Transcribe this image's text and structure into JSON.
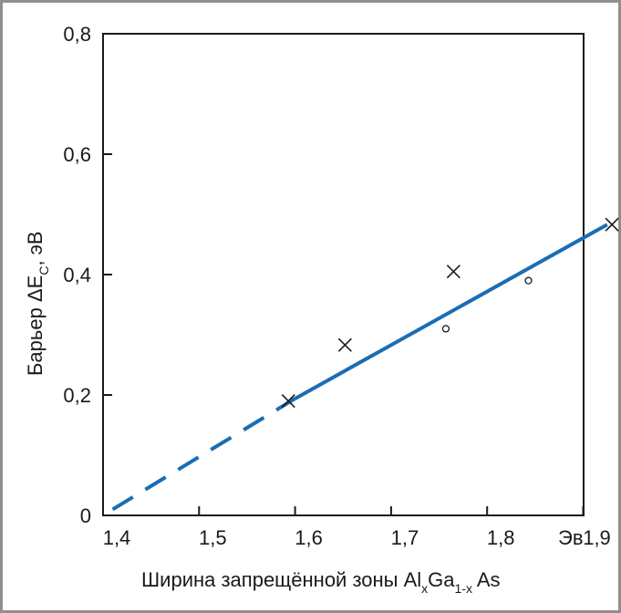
{
  "chart_data": {
    "type": "scatter",
    "xlabel": {
      "main": "Ширина запрещённой зоны Al",
      "sub1": "x",
      "mid": "Ga",
      "sub2": "1-x",
      "end": " As"
    },
    "ylabel": {
      "main": "Барьер ΔE",
      "sub": "C",
      "end": ", эВ"
    },
    "x_unit": "Эв",
    "xlim": [
      1.4,
      1.9
    ],
    "ylim": [
      0,
      0.8
    ],
    "x_ticks": [
      {
        "value": 1.4,
        "label": "1,4"
      },
      {
        "value": 1.5,
        "label": "1,5"
      },
      {
        "value": 1.6,
        "label": "1,6"
      },
      {
        "value": 1.7,
        "label": "1,7"
      },
      {
        "value": 1.8,
        "label": "1,8"
      },
      {
        "value": 1.9,
        "label": "1,9"
      }
    ],
    "y_ticks": [
      {
        "value": 0,
        "label": "0"
      },
      {
        "value": 0.2,
        "label": "0,2"
      },
      {
        "value": 0.4,
        "label": "0,4"
      },
      {
        "value": 0.6,
        "label": "0,6"
      },
      {
        "value": 0.8,
        "label": "0,8"
      }
    ],
    "series": [
      {
        "marker": "cross",
        "points": [
          {
            "x": 1.593,
            "y": 0.19
          },
          {
            "x": 1.652,
            "y": 0.283
          },
          {
            "x": 1.765,
            "y": 0.405
          },
          {
            "x": 1.93,
            "y": 0.483
          }
        ]
      },
      {
        "marker": "circle",
        "points": [
          {
            "x": 1.757,
            "y": 0.31
          },
          {
            "x": 1.843,
            "y": 0.39
          }
        ]
      }
    ],
    "fit_line": {
      "color": "#1a6db4",
      "dashed": {
        "x": [
          1.41,
          1.6
        ],
        "y": [
          0.01,
          0.194
        ]
      },
      "solid": {
        "x": [
          1.6,
          1.925
        ],
        "y": [
          0.194,
          0.483
        ]
      }
    },
    "grid": false,
    "colors": {
      "axis": "#1a1a1a",
      "line": "#1a6db4",
      "frame": "#8f8f8f"
    }
  }
}
